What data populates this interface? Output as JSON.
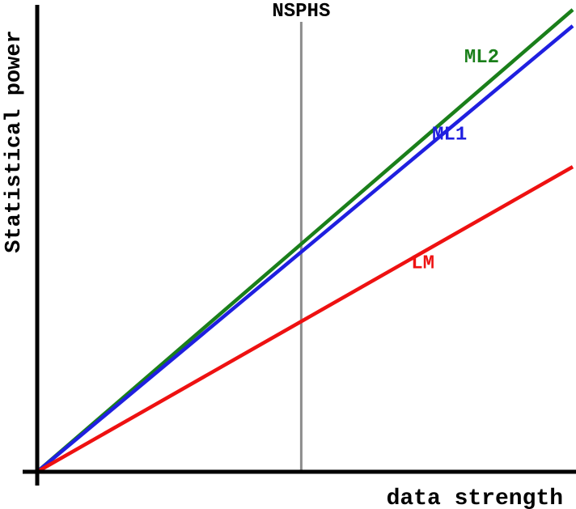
{
  "chart_data": {
    "type": "line",
    "title": "",
    "xlabel": "data strength",
    "ylabel": "Statistical power",
    "xlim": [
      0,
      1
    ],
    "ylim": [
      0,
      1
    ],
    "grid": false,
    "legend": "none",
    "reference_line": {
      "label": "NSPHS",
      "x": 0.493,
      "color": "#8c8c8c"
    },
    "series": [
      {
        "name": "ML2",
        "color": "#1a7f1a",
        "x": [
          0,
          1
        ],
        "y": [
          0,
          1.0
        ]
      },
      {
        "name": "ML1",
        "color": "#1f1fe0",
        "x": [
          0,
          1
        ],
        "y": [
          0,
          0.965
        ]
      },
      {
        "name": "LM",
        "color": "#ee1111",
        "x": [
          0,
          1
        ],
        "y": [
          0,
          0.66
        ]
      }
    ]
  }
}
